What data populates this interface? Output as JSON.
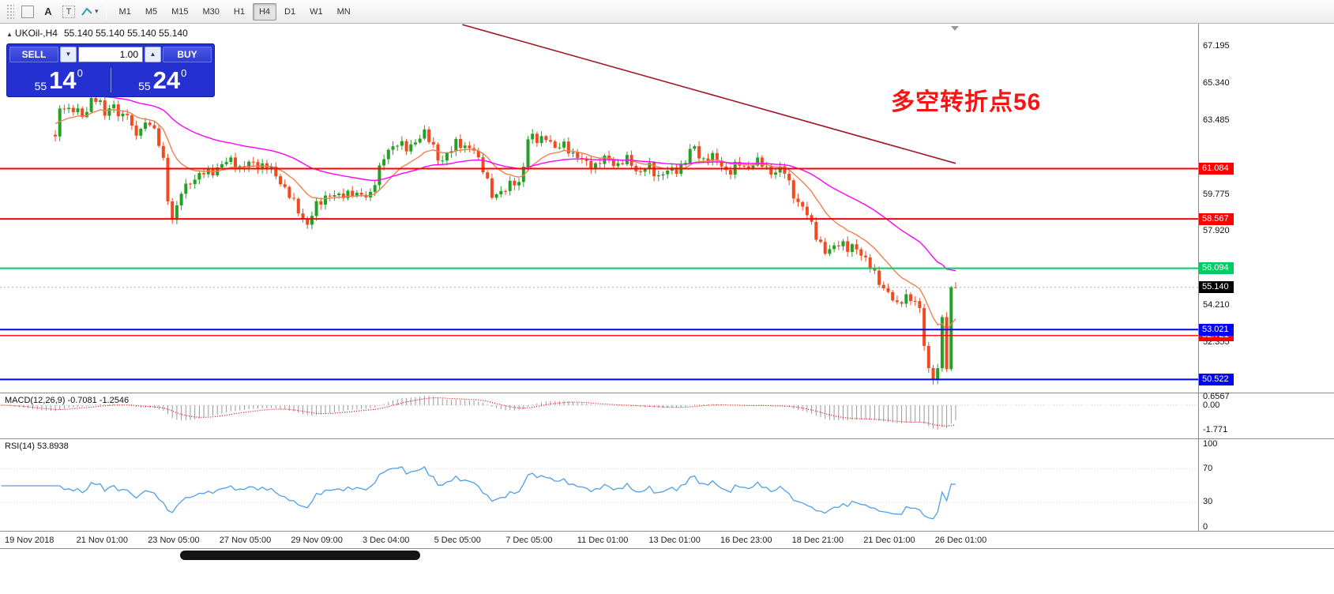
{
  "toolbar": {
    "tools": [
      {
        "name": "drag-grip",
        "label": ""
      },
      {
        "name": "text-label-tool",
        "label": "A"
      },
      {
        "name": "text-box-tool",
        "label": "T"
      },
      {
        "name": "shapes-tool",
        "label": ""
      }
    ],
    "timeframes": [
      {
        "label": "M1",
        "active": false
      },
      {
        "label": "M5",
        "active": false
      },
      {
        "label": "M15",
        "active": false
      },
      {
        "label": "M30",
        "active": false
      },
      {
        "label": "H1",
        "active": false
      },
      {
        "label": "H4",
        "active": true
      },
      {
        "label": "D1",
        "active": false
      },
      {
        "label": "W1",
        "active": false
      },
      {
        "label": "MN",
        "active": false
      }
    ]
  },
  "icons": {
    "volume_down": "▼",
    "volume_up": "▲",
    "collapse_arrow": "▲",
    "dropdown_caret": "▾"
  },
  "symbol_header": {
    "symbol": "UKOil-,H4",
    "ohlc": "55.140 55.140 55.140 55.140"
  },
  "annotation": {
    "text": "多空转折点56",
    "color": "#ff0000"
  },
  "trade_panel": {
    "sell_label": "SELL",
    "buy_label": "BUY",
    "volume": "1.00",
    "sell_price": {
      "full": "55.140",
      "prefix": "55",
      "big": "14",
      "sup": "0"
    },
    "buy_price": {
      "full": "55.240",
      "prefix": "55",
      "big": "24",
      "sup": "0"
    }
  },
  "chart_data": {
    "type": "candlestick",
    "symbol": "UKOil-",
    "timeframe": "H4",
    "last_price": 55.14,
    "visible_price_range": [
      49.9,
      68.3
    ],
    "up_color": "#23a127",
    "down_color": "#f04a20",
    "candle_count": 201,
    "axis_labels": [
      {
        "label": "67.195",
        "price": 67.195
      },
      {
        "label": "65.340",
        "price": 65.34
      },
      {
        "label": "63.485",
        "price": 63.485
      },
      {
        "label": "59.775",
        "price": 59.775
      },
      {
        "label": "57.920",
        "price": 57.92
      },
      {
        "label": "54.210",
        "price": 54.21
      },
      {
        "label": "52.355",
        "price": 52.355
      }
    ],
    "price_tags": [
      {
        "label": "61.084",
        "price": 61.084,
        "color": "#ff0000"
      },
      {
        "label": "58.567",
        "price": 58.567,
        "color": "#ff0000"
      },
      {
        "label": "56.094",
        "price": 56.094,
        "color": "#00cc66"
      },
      {
        "label": "55.140",
        "price": 55.14,
        "color": "#000000"
      },
      {
        "label": "52.721",
        "price": 52.721,
        "color": "#ff0000"
      },
      {
        "label": "53.021",
        "price": 53.021,
        "color": "#0000ff"
      },
      {
        "label": "50.522",
        "price": 50.522,
        "color": "#0000ff"
      }
    ],
    "hlines": [
      {
        "price": 61.084,
        "color": "#ff0000",
        "width": 2
      },
      {
        "price": 58.567,
        "color": "#ff0000",
        "width": 2
      },
      {
        "price": 56.094,
        "color": "#00cc66",
        "width": 2
      },
      {
        "price": 52.721,
        "color": "#ff0000",
        "width": 1.3
      },
      {
        "price": 53.021,
        "color": "#0000ff",
        "width": 2
      },
      {
        "price": 50.522,
        "color": "#0000ff",
        "width": 2
      }
    ],
    "trendline": {
      "from": [
        0.452,
        68.3
      ],
      "to": [
        1.0,
        61.35
      ],
      "color": "#a01828"
    },
    "moving_averages": [
      {
        "name": "fast-ma",
        "period": 13,
        "color": "#f08050",
        "seed": 64.6
      },
      {
        "name": "slow-ma",
        "period": 45,
        "color": "#ff00ff",
        "seed": 66.4
      }
    ],
    "price_path": [
      [
        -0.06,
        64.3
      ],
      [
        -0.04,
        63.6
      ],
      [
        -0.02,
        63.1
      ],
      [
        0.0,
        62.7
      ],
      [
        0.006,
        64.35
      ],
      [
        0.015,
        63.8
      ],
      [
        0.024,
        64.1
      ],
      [
        0.032,
        63.7
      ],
      [
        0.04,
        64.45
      ],
      [
        0.048,
        64.7
      ],
      [
        0.056,
        63.9
      ],
      [
        0.064,
        64.25
      ],
      [
        0.072,
        63.6
      ],
      [
        0.08,
        63.95
      ],
      [
        0.088,
        62.45
      ],
      [
        0.096,
        63.1
      ],
      [
        0.104,
        63.6
      ],
      [
        0.112,
        62.7
      ],
      [
        0.12,
        61.6
      ],
      [
        0.125,
        59.6
      ],
      [
        0.13,
        58.75
      ],
      [
        0.135,
        59.1
      ],
      [
        0.14,
        59.9
      ],
      [
        0.15,
        60.45
      ],
      [
        0.162,
        60.7
      ],
      [
        0.175,
        60.95
      ],
      [
        0.186,
        61.3
      ],
      [
        0.196,
        61.6
      ],
      [
        0.206,
        61.15
      ],
      [
        0.218,
        61.4
      ],
      [
        0.23,
        61.2
      ],
      [
        0.242,
        60.85
      ],
      [
        0.252,
        60.3
      ],
      [
        0.262,
        59.55
      ],
      [
        0.272,
        58.9
      ],
      [
        0.28,
        58.35
      ],
      [
        0.29,
        59.25
      ],
      [
        0.302,
        59.8
      ],
      [
        0.314,
        59.55
      ],
      [
        0.326,
        59.9
      ],
      [
        0.338,
        59.65
      ],
      [
        0.35,
        59.95
      ],
      [
        0.362,
        61.3
      ],
      [
        0.37,
        62.1
      ],
      [
        0.38,
        62.35
      ],
      [
        0.39,
        61.95
      ],
      [
        0.4,
        62.45
      ],
      [
        0.41,
        62.8
      ],
      [
        0.42,
        62.25
      ],
      [
        0.428,
        61.45
      ],
      [
        0.438,
        61.9
      ],
      [
        0.446,
        62.6
      ],
      [
        0.456,
        62.05
      ],
      [
        0.466,
        61.9
      ],
      [
        0.476,
        61.0
      ],
      [
        0.486,
        59.45
      ],
      [
        0.496,
        60.1
      ],
      [
        0.506,
        60.4
      ],
      [
        0.516,
        60.3
      ],
      [
        0.526,
        62.95
      ],
      [
        0.536,
        62.3
      ],
      [
        0.546,
        62.7
      ],
      [
        0.556,
        61.95
      ],
      [
        0.566,
        62.3
      ],
      [
        0.576,
        61.85
      ],
      [
        0.588,
        61.45
      ],
      [
        0.6,
        61.3
      ],
      [
        0.612,
        61.55
      ],
      [
        0.624,
        61.2
      ],
      [
        0.636,
        61.5
      ],
      [
        0.648,
        60.9
      ],
      [
        0.658,
        61.3
      ],
      [
        0.668,
        60.75
      ],
      [
        0.678,
        61.0
      ],
      [
        0.688,
        60.85
      ],
      [
        0.698,
        61.3
      ],
      [
        0.708,
        62.15
      ],
      [
        0.718,
        61.5
      ],
      [
        0.728,
        61.8
      ],
      [
        0.738,
        61.4
      ],
      [
        0.748,
        60.95
      ],
      [
        0.758,
        61.3
      ],
      [
        0.768,
        61.05
      ],
      [
        0.778,
        61.4
      ],
      [
        0.788,
        61.1
      ],
      [
        0.798,
        60.9
      ],
      [
        0.808,
        61.15
      ],
      [
        0.816,
        60.35
      ],
      [
        0.824,
        59.45
      ],
      [
        0.832,
        59.0
      ],
      [
        0.84,
        58.3
      ],
      [
        0.848,
        57.4
      ],
      [
        0.856,
        56.65
      ],
      [
        0.864,
        57.15
      ],
      [
        0.872,
        57.5
      ],
      [
        0.88,
        57.0
      ],
      [
        0.888,
        57.3
      ],
      [
        0.896,
        56.9
      ],
      [
        0.904,
        56.25
      ],
      [
        0.912,
        55.6
      ],
      [
        0.92,
        55.1
      ],
      [
        0.928,
        54.6
      ],
      [
        0.934,
        54.05
      ],
      [
        0.94,
        54.5
      ],
      [
        0.946,
        54.8
      ],
      [
        0.952,
        54.35
      ],
      [
        0.958,
        54.45
      ],
      [
        0.96,
        54.0
      ],
      [
        0.965,
        52.5
      ],
      [
        0.97,
        51.1
      ],
      [
        0.975,
        50.65
      ],
      [
        0.98,
        50.95
      ],
      [
        0.985,
        53.6
      ],
      [
        0.99,
        51.2
      ],
      [
        0.995,
        55.05
      ],
      [
        1.0,
        55.14
      ]
    ]
  },
  "macd": {
    "header": "MACD(12,26,9) -0.7081 -1.2546",
    "main_value": "-0.7081",
    "signal_value": "-1.2546",
    "histogram_color": "#9a9a9a",
    "signal_color": "#ff0000",
    "axis": [
      {
        "label": "0.6567",
        "value": 0.6567
      },
      {
        "label": "0.00",
        "value": 0
      },
      {
        "label": "-1.771",
        "value": -1.771
      }
    ]
  },
  "rsi": {
    "header": "RSI(14) 53.8938",
    "value": "53.8938",
    "line_color": "#4f9fe8",
    "levels": [
      70,
      30
    ],
    "axis": [
      {
        "label": "100",
        "value": 100
      },
      {
        "label": "70",
        "value": 70
      },
      {
        "label": "30",
        "value": 30
      },
      {
        "label": "0",
        "value": 0
      }
    ]
  },
  "time_axis": {
    "labels": [
      "19 Nov 2018",
      "21 Nov 01:00",
      "23 Nov 05:00",
      "27 Nov 05:00",
      "29 Nov 09:00",
      "3 Dec 04:00",
      "5 Dec 05:00",
      "7 Dec 05:00",
      "11 Dec 01:00",
      "13 Dec 01:00",
      "16 Dec 23:00",
      "18 Dec 21:00",
      "21 Dec 01:00",
      "26 Dec 01:00"
    ]
  }
}
